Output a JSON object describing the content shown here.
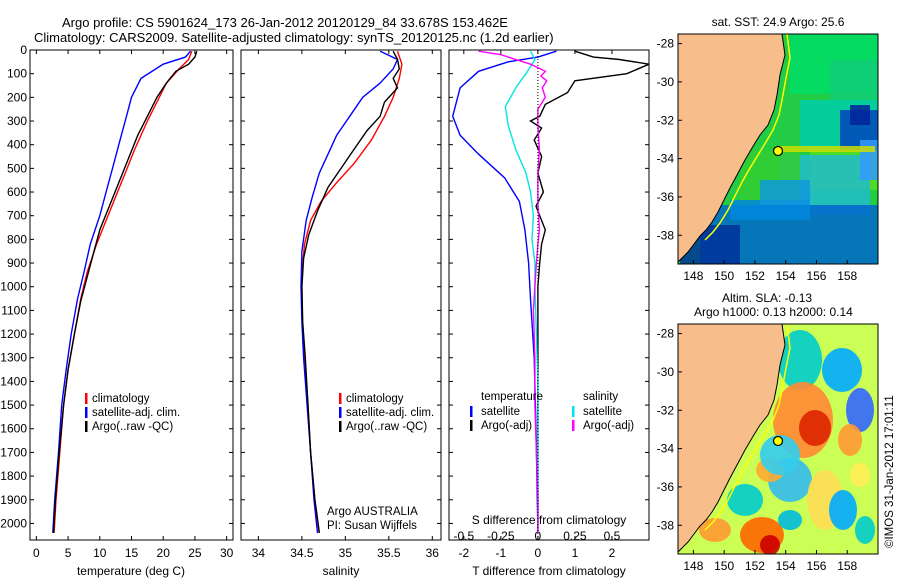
{
  "header": {
    "line1": "Argo profile: CS 5901624_173 26-Jan-2012 20120129_84 33.678S 153.462E",
    "line2": "Climatology: CARS2009. Satellite-adjusted climatology: synTS_20120125.nc (1.2d earlier)"
  },
  "colors": {
    "climatology": "#ff0000",
    "satellite": "#0000ff",
    "argo": "#000000",
    "sat_s": "#00e5e5",
    "argo_s": "#ff00ff"
  },
  "chart_data": [
    {
      "type": "line",
      "id": "temperature",
      "xlabel": "temperature (deg C)",
      "xlim": [
        -1,
        31
      ],
      "ylim": [
        0,
        2070
      ],
      "xticks": [
        0,
        5,
        10,
        15,
        20,
        25,
        30
      ],
      "yticks": [
        0,
        100,
        200,
        300,
        400,
        500,
        600,
        700,
        800,
        900,
        1000,
        1100,
        1200,
        1300,
        1400,
        1500,
        1600,
        1700,
        1800,
        1900,
        2000
      ],
      "legend": [
        "climatology",
        "satellite-adj. clim.",
        "Argo(..raw -QC)"
      ],
      "series": [
        {
          "name": "climatology",
          "color": "#ff0000",
          "points": [
            [
              24.5,
              5
            ],
            [
              24,
              40
            ],
            [
              22.5,
              80
            ],
            [
              20.5,
              140
            ],
            [
              19,
              220
            ],
            [
              17.5,
              300
            ],
            [
              15.5,
              420
            ],
            [
              14,
              520
            ],
            [
              12.5,
              620
            ],
            [
              11,
              720
            ],
            [
              9.5,
              820
            ],
            [
              8,
              940
            ],
            [
              7,
              1050
            ],
            [
              6,
              1200
            ],
            [
              5,
              1350
            ],
            [
              4.3,
              1500
            ],
            [
              3.7,
              1700
            ],
            [
              3.1,
              1900
            ],
            [
              2.8,
              2040
            ]
          ]
        },
        {
          "name": "satellite-adj. clim.",
          "color": "#0000ff",
          "points": [
            [
              24.3,
              5
            ],
            [
              23.5,
              30
            ],
            [
              20,
              60
            ],
            [
              16.5,
              120
            ],
            [
              15,
              200
            ],
            [
              14,
              300
            ],
            [
              13,
              400
            ],
            [
              12,
              500
            ],
            [
              11,
              600
            ],
            [
              10,
              700
            ],
            [
              8.5,
              820
            ],
            [
              7.5,
              940
            ],
            [
              6.5,
              1050
            ],
            [
              5.5,
              1200
            ],
            [
              4.7,
              1350
            ],
            [
              4,
              1500
            ],
            [
              3.5,
              1700
            ],
            [
              2.9,
              1900
            ],
            [
              2.6,
              2040
            ]
          ]
        },
        {
          "name": "Argo(..raw -QC)",
          "color": "#000000",
          "points": [
            [
              25.3,
              5
            ],
            [
              25,
              30
            ],
            [
              24,
              60
            ],
            [
              22,
              90
            ],
            [
              20.5,
              140
            ],
            [
              19,
              200
            ],
            [
              17.5,
              280
            ],
            [
              16,
              360
            ],
            [
              14.5,
              460
            ],
            [
              13,
              560
            ],
            [
              11.5,
              660
            ],
            [
              10,
              760
            ],
            [
              9,
              860
            ],
            [
              8,
              960
            ],
            [
              7,
              1060
            ],
            [
              6,
              1200
            ],
            [
              5,
              1350
            ],
            [
              4.3,
              1500
            ],
            [
              3.6,
              1700
            ],
            [
              3,
              1900
            ],
            [
              2.7,
              2040
            ]
          ]
        }
      ]
    },
    {
      "type": "line",
      "id": "salinity",
      "xlabel": "salinity",
      "xlim": [
        33.8,
        36.1
      ],
      "ylim": [
        0,
        2070
      ],
      "xticks": [
        34,
        34.5,
        35,
        35.5,
        36
      ],
      "legend": [
        "climatology",
        "satellite-adj. clim.",
        "Argo(..raw -QC)"
      ],
      "annotation": [
        "Argo AUSTRALIA",
        "PI: Susan Wijffels"
      ],
      "series": [
        {
          "name": "climatology",
          "color": "#ff0000",
          "points": [
            [
              35.6,
              5
            ],
            [
              35.65,
              60
            ],
            [
              35.62,
              120
            ],
            [
              35.55,
              200
            ],
            [
              35.45,
              280
            ],
            [
              35.3,
              380
            ],
            [
              35.1,
              480
            ],
            [
              34.9,
              560
            ],
            [
              34.72,
              640
            ],
            [
              34.6,
              720
            ],
            [
              34.53,
              820
            ],
            [
              34.5,
              950
            ],
            [
              34.5,
              1100
            ],
            [
              34.53,
              1300
            ],
            [
              34.57,
              1500
            ],
            [
              34.6,
              1700
            ],
            [
              34.65,
              1900
            ],
            [
              34.7,
              2040
            ]
          ]
        },
        {
          "name": "satellite-adj. clim.",
          "color": "#0000ff",
          "points": [
            [
              35.4,
              5
            ],
            [
              35.6,
              40
            ],
            [
              35.55,
              80
            ],
            [
              35.4,
              140
            ],
            [
              35.2,
              200
            ],
            [
              35.05,
              280
            ],
            [
              34.9,
              360
            ],
            [
              34.8,
              440
            ],
            [
              34.7,
              520
            ],
            [
              34.62,
              620
            ],
            [
              34.55,
              720
            ],
            [
              34.5,
              850
            ],
            [
              34.49,
              1000
            ],
            [
              34.5,
              1150
            ],
            [
              34.52,
              1300
            ],
            [
              34.56,
              1500
            ],
            [
              34.6,
              1700
            ],
            [
              34.64,
              1900
            ],
            [
              34.68,
              2040
            ]
          ]
        },
        {
          "name": "Argo(..raw -QC)",
          "color": "#000000",
          "points": [
            [
              35.55,
              5
            ],
            [
              35.6,
              40
            ],
            [
              35.62,
              80
            ],
            [
              35.55,
              120
            ],
            [
              35.6,
              160
            ],
            [
              35.45,
              220
            ],
            [
              35.4,
              280
            ],
            [
              35.25,
              340
            ],
            [
              35.1,
              420
            ],
            [
              34.95,
              500
            ],
            [
              34.8,
              580
            ],
            [
              34.68,
              680
            ],
            [
              34.58,
              780
            ],
            [
              34.52,
              880
            ],
            [
              34.5,
              1000
            ],
            [
              34.51,
              1150
            ],
            [
              34.54,
              1300
            ],
            [
              34.57,
              1500
            ],
            [
              34.6,
              1700
            ],
            [
              34.65,
              1900
            ],
            [
              34.7,
              2040
            ]
          ]
        }
      ]
    },
    {
      "type": "line",
      "id": "difference",
      "xlabel": "T difference from climatology",
      "xlabel_top": "S difference from climatology",
      "xlim_T": [
        -2.4,
        3.0
      ],
      "xticks_T": [
        -2,
        -1,
        0,
        1,
        2
      ],
      "xticks_S": [
        -0.5,
        -0.25,
        0,
        0.25,
        0.5
      ],
      "xticks_S_labels": [
        "-0.5",
        "-0.25",
        "0",
        "0.25",
        "0.5"
      ],
      "s_scale": 4,
      "legend_groups": [
        {
          "title": "temperature",
          "items": [
            "satellite",
            "Argo(-adj)"
          ]
        },
        {
          "title": "salinity",
          "items": [
            "satellite",
            "Argo(-adj)"
          ]
        }
      ],
      "series": [
        {
          "name": "T satellite",
          "color": "#0000ff",
          "points": [
            [
              0.5,
              5
            ],
            [
              0,
              30
            ],
            [
              -0.8,
              50
            ],
            [
              -1.6,
              90
            ],
            [
              -2.1,
              160
            ],
            [
              -2.3,
              280
            ],
            [
              -2.1,
              360
            ],
            [
              -1.6,
              440
            ],
            [
              -0.9,
              540
            ],
            [
              -0.5,
              640
            ],
            [
              -0.35,
              760
            ],
            [
              -0.25,
              900
            ],
            [
              -0.2,
              1050
            ],
            [
              -0.1,
              1300
            ],
            [
              -0.05,
              1600
            ],
            [
              -0.02,
              1850
            ],
            [
              0,
              2040
            ]
          ]
        },
        {
          "name": "T Argo(-adj)",
          "color": "#000000",
          "points": [
            [
              1,
              5
            ],
            [
              1.5,
              30
            ],
            [
              2.2,
              40
            ],
            [
              3,
              60
            ],
            [
              2.4,
              100
            ],
            [
              1,
              130
            ],
            [
              0.8,
              180
            ],
            [
              0.2,
              230
            ],
            [
              0.05,
              280
            ],
            [
              -0.2,
              300
            ],
            [
              0.1,
              330
            ],
            [
              -0.1,
              380
            ],
            [
              0.1,
              450
            ],
            [
              0,
              520
            ],
            [
              0.15,
              600
            ],
            [
              -0.05,
              660
            ],
            [
              0.2,
              760
            ],
            [
              0.1,
              820
            ],
            [
              0.05,
              900
            ],
            [
              0,
              1000
            ],
            [
              0,
              1300
            ],
            [
              0,
              1600
            ],
            [
              0,
              2040
            ]
          ]
        },
        {
          "name": "S satellite",
          "color": "#00e5e5",
          "points": [
            [
              -0.05,
              5
            ],
            [
              -0.02,
              40
            ],
            [
              -0.08,
              100
            ],
            [
              -0.15,
              160
            ],
            [
              -0.22,
              240
            ],
            [
              -0.2,
              320
            ],
            [
              -0.15,
              420
            ],
            [
              -0.08,
              520
            ],
            [
              -0.05,
              600
            ],
            [
              -0.03,
              700
            ],
            [
              -0.04,
              800
            ],
            [
              -0.02,
              900
            ],
            [
              -0.02,
              1000
            ],
            [
              -0.01,
              1200
            ],
            [
              0,
              1400
            ],
            [
              0,
              1700
            ],
            [
              0,
              2040
            ]
          ]
        },
        {
          "name": "S Argo(-adj)",
          "color": "#ff00ff",
          "points": [
            [
              -0.4,
              5
            ],
            [
              -0.25,
              20
            ],
            [
              -0.05,
              60
            ],
            [
              0.05,
              90
            ],
            [
              0.02,
              110
            ],
            [
              0.06,
              130
            ],
            [
              0.03,
              160
            ],
            [
              0.05,
              200
            ],
            [
              0,
              250
            ],
            [
              0,
              320
            ],
            [
              0.01,
              420
            ],
            [
              0,
              520
            ],
            [
              0,
              650
            ],
            [
              0.01,
              760
            ],
            [
              0,
              820
            ],
            [
              -0.01,
              900
            ],
            [
              -0.02,
              1000
            ],
            [
              -0.03,
              1100
            ],
            [
              -0.02,
              1300
            ],
            [
              -0.02,
              1500
            ],
            [
              -0.01,
              1700
            ],
            [
              0,
              1900
            ],
            [
              0,
              2040
            ]
          ]
        }
      ]
    },
    {
      "type": "heatmap",
      "id": "sst_map",
      "title": "sat. SST: 24.9 Argo: 25.6",
      "xticks": [
        148,
        150,
        152,
        154,
        156,
        158
      ],
      "yticks": [
        -28,
        -30,
        -32,
        -34,
        -36,
        -38
      ],
      "xlim": [
        147,
        160
      ],
      "ylim": [
        -39.5,
        -27.5
      ],
      "float_position": {
        "lon": 153.46,
        "lat": -33.68
      }
    },
    {
      "type": "heatmap",
      "id": "sla_map",
      "title1": "Altim. SLA: -0.13",
      "title2": "Argo h1000: 0.13 h2000: 0.14",
      "xticks": [
        148,
        150,
        152,
        154,
        156,
        158
      ],
      "yticks": [
        -28,
        -30,
        -32,
        -34,
        -36,
        -38
      ],
      "xlim": [
        147,
        160
      ],
      "ylim": [
        -39.5,
        -27.5
      ],
      "float_position": {
        "lon": 153.46,
        "lat": -33.68
      }
    }
  ],
  "credit": "©IMOS 31-Jan-2012 17:01:11"
}
